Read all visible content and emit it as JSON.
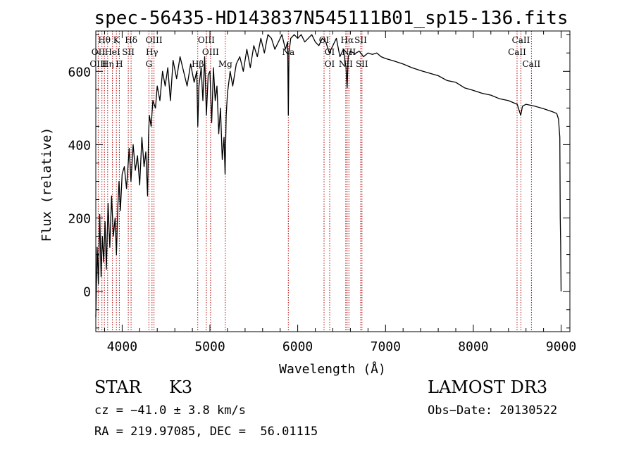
{
  "chart_data": {
    "type": "line",
    "title": "spec-56435-HD143837N545111B01_sp15-136.fits",
    "xlabel": "Wavelength (Å)",
    "ylabel": "Flux (relative)",
    "xlim": [
      3700,
      9100
    ],
    "ylim": [
      -110,
      710
    ],
    "x_ticks": [
      4000,
      5000,
      6000,
      7000,
      8000,
      9000
    ],
    "y_ticks": [
      0,
      200,
      400,
      600
    ],
    "series": [
      {
        "name": "spectrum",
        "x": [
          3700,
          3715,
          3730,
          3745,
          3760,
          3775,
          3790,
          3805,
          3820,
          3840,
          3860,
          3880,
          3900,
          3920,
          3935,
          3950,
          3965,
          3980,
          4000,
          4025,
          4050,
          4080,
          4100,
          4125,
          4150,
          4175,
          4200,
          4225,
          4250,
          4270,
          4290,
          4300,
          4310,
          4330,
          4350,
          4380,
          4400,
          4430,
          4460,
          4490,
          4520,
          4550,
          4580,
          4620,
          4660,
          4700,
          4740,
          4780,
          4820,
          4850,
          4862,
          4875,
          4900,
          4920,
          4940,
          4960,
          4980,
          5000,
          5020,
          5040,
          5060,
          5080,
          5100,
          5120,
          5140,
          5160,
          5172,
          5185,
          5200,
          5230,
          5260,
          5300,
          5340,
          5380,
          5420,
          5460,
          5500,
          5540,
          5580,
          5620,
          5660,
          5700,
          5740,
          5780,
          5820,
          5860,
          5885,
          5893,
          5900,
          5920,
          5960,
          6000,
          6040,
          6080,
          6120,
          6160,
          6200,
          6240,
          6280,
          6320,
          6360,
          6400,
          6440,
          6480,
          6520,
          6550,
          6563,
          6575,
          6600,
          6650,
          6700,
          6750,
          6800,
          6850,
          6900,
          6950,
          7000,
          7100,
          7200,
          7300,
          7400,
          7500,
          7600,
          7700,
          7800,
          7900,
          8000,
          8100,
          8200,
          8300,
          8400,
          8500,
          8540,
          8560,
          8600,
          8700,
          8800,
          8900,
          8950,
          8970,
          8985,
          8990,
          8995,
          9000
        ],
        "y": [
          -70,
          120,
          20,
          210,
          40,
          150,
          80,
          190,
          60,
          240,
          120,
          260,
          150,
          200,
          100,
          230,
          300,
          220,
          320,
          340,
          280,
          390,
          300,
          400,
          330,
          370,
          290,
          420,
          340,
          380,
          260,
          420,
          480,
          450,
          520,
          500,
          560,
          520,
          600,
          560,
          610,
          520,
          630,
          580,
          640,
          600,
          560,
          620,
          570,
          600,
          450,
          560,
          610,
          520,
          640,
          480,
          590,
          600,
          460,
          610,
          520,
          560,
          430,
          500,
          360,
          420,
          320,
          480,
          540,
          600,
          560,
          620,
          640,
          600,
          660,
          610,
          670,
          640,
          690,
          650,
          700,
          690,
          660,
          680,
          700,
          660,
          680,
          480,
          650,
          690,
          700,
          690,
          700,
          680,
          690,
          700,
          680,
          670,
          690,
          680,
          650,
          670,
          690,
          640,
          660,
          610,
          555,
          640,
          655,
          648,
          655,
          640,
          650,
          646,
          650,
          640,
          635,
          628,
          620,
          610,
          602,
          595,
          588,
          575,
          570,
          555,
          548,
          540,
          535,
          525,
          520,
          510,
          480,
          505,
          510,
          505,
          498,
          490,
          485,
          470,
          420,
          200,
          130,
          0
        ]
      }
    ],
    "line_labels": [
      {
        "label": "Hθ",
        "wavelength": 3798,
        "row": 1
      },
      {
        "label": "K",
        "wavelength": 3934,
        "row": 1
      },
      {
        "label": "Hδ",
        "wavelength": 4102,
        "row": 1
      },
      {
        "label": "OIII",
        "wavelength": 4363,
        "row": 1
      },
      {
        "label": "OIII",
        "wavelength": 4959,
        "row": 1
      },
      {
        "label": "OI",
        "wavelength": 6300,
        "row": 1
      },
      {
        "label": "Hα",
        "wavelength": 6563,
        "row": 1
      },
      {
        "label": "SII",
        "wavelength": 6717,
        "row": 1
      },
      {
        "label": "CaII",
        "wavelength": 8542,
        "row": 1
      },
      {
        "label": "OII",
        "wavelength": 3727,
        "row": 2
      },
      {
        "label": "HeI",
        "wavelength": 3889,
        "row": 2
      },
      {
        "label": "SII",
        "wavelength": 4070,
        "row": 2
      },
      {
        "label": "Hγ",
        "wavelength": 4340,
        "row": 2
      },
      {
        "label": "OIII",
        "wavelength": 5007,
        "row": 2
      },
      {
        "label": "Na",
        "wavelength": 5893,
        "row": 2
      },
      {
        "label": "OI",
        "wavelength": 6364,
        "row": 2
      },
      {
        "label": "NII",
        "wavelength": 6583,
        "row": 2
      },
      {
        "label": "CaII",
        "wavelength": 8498,
        "row": 2
      },
      {
        "label": "OIII",
        "wavelength": 3727,
        "row": 3
      },
      {
        "label": "Hη",
        "wavelength": 3835,
        "row": 3
      },
      {
        "label": "H",
        "wavelength": 3968,
        "row": 3
      },
      {
        "label": "G",
        "wavelength": 4305,
        "row": 3
      },
      {
        "label": "Hβ",
        "wavelength": 4861,
        "row": 3
      },
      {
        "label": "Mg",
        "wavelength": 5175,
        "row": 3
      },
      {
        "label": "OI",
        "wavelength": 6364,
        "row": 3
      },
      {
        "label": "NII",
        "wavelength": 6548,
        "row": 3
      },
      {
        "label": "SII",
        "wavelength": 6731,
        "row": 3
      },
      {
        "label": "CaII",
        "wavelength": 8662,
        "row": 3
      }
    ],
    "line_markers": [
      3727,
      3770,
      3798,
      3835,
      3889,
      3934,
      3968,
      4070,
      4102,
      4305,
      4340,
      4363,
      4861,
      4959,
      5007,
      5175,
      5893,
      6300,
      6364,
      6548,
      6563,
      6583,
      6717,
      6731,
      8498,
      8542,
      8662
    ]
  },
  "info": {
    "class": "STAR",
    "subclass": "K3",
    "catalog": "LAMOST DR3",
    "cz": "cz = −41.0 ± 3.8 km/s",
    "obs_date": "Obs−Date: 20130522",
    "coords": "RA = 219.97085, DEC =  56.01115"
  },
  "colors": {
    "line": "#000000",
    "marker": "#b00000",
    "axis": "#000000"
  }
}
